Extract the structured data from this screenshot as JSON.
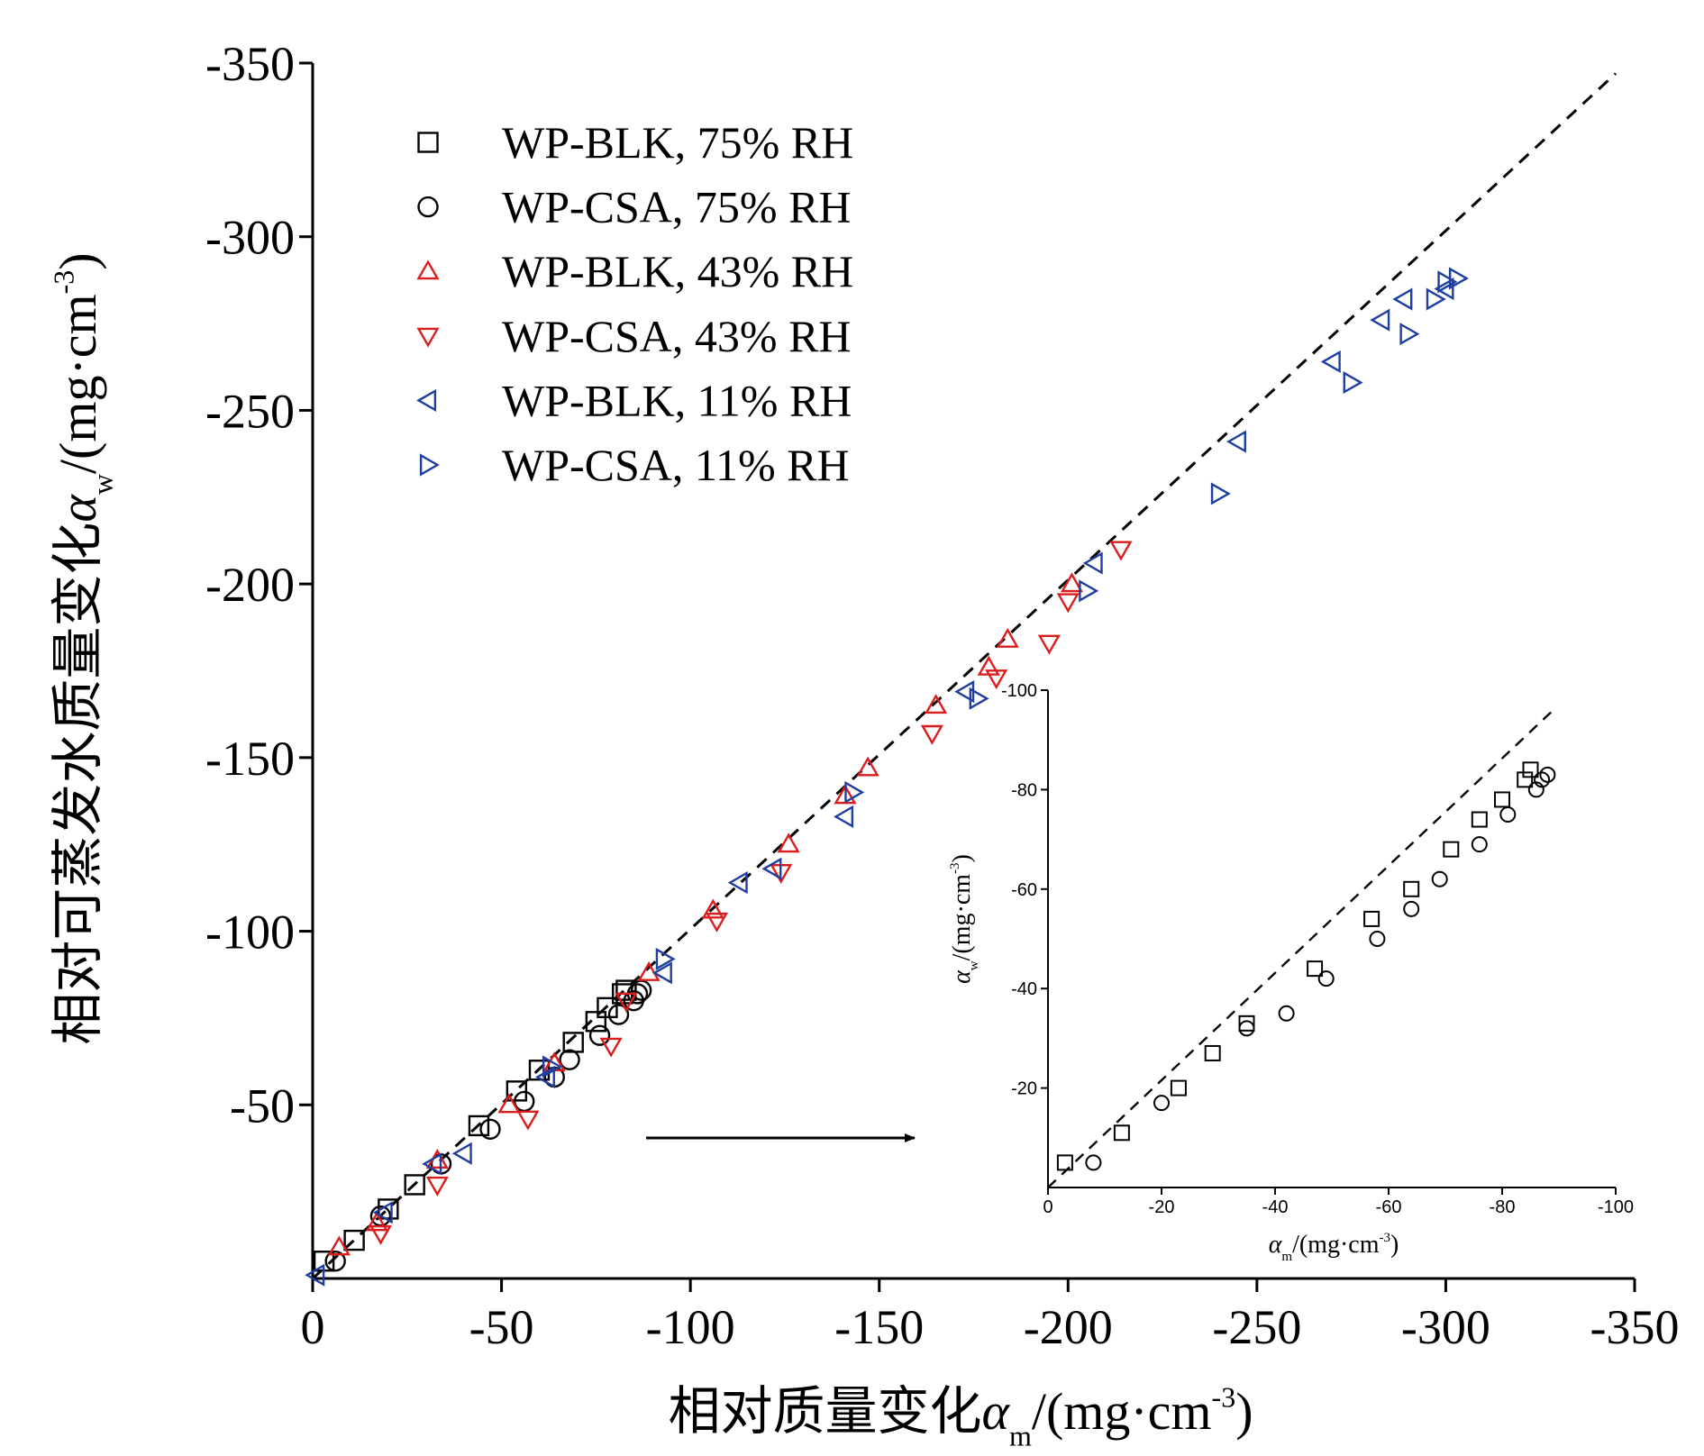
{
  "chart_data": [
    {
      "type": "scatter",
      "xlabel": "相对质量变化α_m/(mg·cm^-3)",
      "ylabel": "相对可蒸发水质量变化α_w/(mg·cm^-3)",
      "xlabel_parts": {
        "pre": "相对质量变化",
        "sym": "α",
        "sub": "m",
        "unit": "/(mg·cm",
        "sup": "-3",
        "close": ")"
      },
      "ylabel_parts": {
        "pre": "相对可蒸发水质量变化",
        "sym": "α",
        "sub": "w",
        "unit": "/(mg·cm",
        "sup": "-3",
        "close": ")"
      },
      "xlim": [
        0,
        -350
      ],
      "ylim": [
        0,
        -350
      ],
      "xticks": [
        0,
        -50,
        -100,
        -150,
        -200,
        -250,
        -300,
        -350
      ],
      "yticks": [
        -50,
        -100,
        -150,
        -200,
        -250,
        -300,
        -350
      ],
      "xtick_labels": [
        "0",
        "-50",
        "-100",
        "-150",
        "-200",
        "-250",
        "-300",
        "-350"
      ],
      "ytick_labels": [
        "-50",
        "-100",
        "-150",
        "-200",
        "-250",
        "-300",
        "-350"
      ],
      "legend_position": "top-left",
      "fit_line": {
        "style": "dashed",
        "from": [
          0,
          0
        ],
        "to": [
          -345,
          -347
        ]
      },
      "annotation": "arrow pointing to inset",
      "series": [
        {
          "name": "WP-BLK, 75% RH",
          "marker": "square",
          "color": "#000000",
          "points": [
            [
              -3,
              -5
            ],
            [
              -11,
              -11
            ],
            [
              -20,
              -20
            ],
            [
              -27,
              -27
            ],
            [
              -44,
              -44
            ],
            [
              -54,
              -54
            ],
            [
              -60,
              -60
            ],
            [
              -69,
              -68
            ],
            [
              -75,
              -74
            ],
            [
              -78,
              -78
            ],
            [
              -82,
              -82
            ],
            [
              -83,
              -83
            ]
          ]
        },
        {
          "name": "WP-CSA, 75% RH",
          "marker": "circle",
          "color": "#000000",
          "points": [
            [
              -6,
              -5
            ],
            [
              -18,
              -18
            ],
            [
              -34,
              -33
            ],
            [
              -47,
              -43
            ],
            [
              -56,
              -51
            ],
            [
              -64,
              -58
            ],
            [
              -68,
              -63
            ],
            [
              -76,
              -70
            ],
            [
              -81,
              -76
            ],
            [
              -85,
              -80
            ],
            [
              -86,
              -82
            ],
            [
              -87,
              -83
            ]
          ]
        },
        {
          "name": "WP-BLK, 43% RH",
          "marker": "triangle-up",
          "color": "#dd1c1c",
          "points": [
            [
              -7,
              -9
            ],
            [
              -17,
              -16
            ],
            [
              -33,
              -34
            ],
            [
              -52,
              -50
            ],
            [
              -64,
              -62
            ],
            [
              -89,
              -88
            ],
            [
              -106,
              -106
            ],
            [
              -126,
              -125
            ],
            [
              -141,
              -139
            ],
            [
              -147,
              -147
            ],
            [
              -165,
              -165
            ],
            [
              -179,
              -176
            ],
            [
              -184,
              -184
            ],
            [
              -201,
              -200
            ]
          ]
        },
        {
          "name": "WP-CSA, 43% RH",
          "marker": "triangle-down",
          "color": "#dd1c1c",
          "points": [
            [
              -18,
              -13
            ],
            [
              -33,
              -27
            ],
            [
              -57,
              -46
            ],
            [
              -79,
              -67
            ],
            [
              -83,
              -80
            ],
            [
              -107,
              -103
            ],
            [
              -124,
              -117
            ],
            [
              -164,
              -157
            ],
            [
              -181,
              -173
            ],
            [
              -195,
              -183
            ],
            [
              -200,
              -195
            ],
            [
              -214,
              -210
            ]
          ]
        },
        {
          "name": "WP-BLK, 11% RH",
          "marker": "triangle-left",
          "color": "#1f3fa0",
          "points": [
            [
              -1,
              -1
            ],
            [
              -19,
              -19
            ],
            [
              -32,
              -33
            ],
            [
              -40,
              -36
            ],
            [
              -62,
              -58
            ],
            [
              -93,
              -88
            ],
            [
              -113,
              -114
            ],
            [
              -122,
              -118
            ],
            [
              -141,
              -133
            ],
            [
              -173,
              -169
            ],
            [
              -207,
              -206
            ],
            [
              -245,
              -241
            ],
            [
              -270,
              -264
            ],
            [
              -283,
              -276
            ],
            [
              -289,
              -282
            ],
            [
              -300,
              -285
            ]
          ]
        },
        {
          "name": "WP-CSA, 11% RH",
          "marker": "triangle-right",
          "color": "#1f3fa0",
          "points": [
            [
              -63,
              -61
            ],
            [
              -93,
              -92
            ],
            [
              -143,
              -140
            ],
            [
              -176,
              -167
            ],
            [
              -205,
              -198
            ],
            [
              -240,
              -226
            ],
            [
              -275,
              -258
            ],
            [
              -290,
              -272
            ],
            [
              -297,
              -282
            ],
            [
              -300,
              -287
            ],
            [
              -303,
              -288
            ]
          ]
        }
      ]
    },
    {
      "type": "scatter",
      "xlabel": "α_m/(mg·cm^-3)",
      "ylabel": "α_w/(mg·cm^-3)",
      "xlabel_parts": {
        "sym": "α",
        "sub": "m",
        "unit": "/(mg·cm",
        "sup": "-3",
        "close": ")"
      },
      "ylabel_parts": {
        "sym": "α",
        "sub": "w",
        "unit": "/(mg·cm",
        "sup": "-3",
        "close": ")"
      },
      "xlim": [
        0,
        -100
      ],
      "ylim": [
        0,
        -100
      ],
      "xticks": [
        0,
        -20,
        -40,
        -60,
        -80,
        -100
      ],
      "yticks": [
        -20,
        -40,
        -60,
        -80,
        -100
      ],
      "xtick_labels": [
        "0",
        "-20",
        "-40",
        "-60",
        "-80",
        "-100"
      ],
      "ytick_labels": [
        "-20",
        "-40",
        "-60",
        "-80",
        "-100"
      ],
      "fit_line": {
        "style": "dashed",
        "from": [
          0,
          0
        ],
        "to": [
          -89,
          -96
        ]
      },
      "series": [
        {
          "name": "WP-BLK, 75% RH",
          "marker": "square",
          "color": "#000000",
          "points": [
            [
              -3,
              -5
            ],
            [
              -13,
              -11
            ],
            [
              -23,
              -20
            ],
            [
              -29,
              -27
            ],
            [
              -35,
              -33
            ],
            [
              -47,
              -44
            ],
            [
              -57,
              -54
            ],
            [
              -64,
              -60
            ],
            [
              -71,
              -68
            ],
            [
              -76,
              -74
            ],
            [
              -80,
              -78
            ],
            [
              -84,
              -82
            ],
            [
              -85,
              -84
            ]
          ]
        },
        {
          "name": "WP-CSA, 75% RH",
          "marker": "circle",
          "color": "#000000",
          "points": [
            [
              -8,
              -5
            ],
            [
              -20,
              -17
            ],
            [
              -35,
              -32
            ],
            [
              -42,
              -35
            ],
            [
              -49,
              -42
            ],
            [
              -58,
              -50
            ],
            [
              -64,
              -56
            ],
            [
              -69,
              -62
            ],
            [
              -76,
              -69
            ],
            [
              -81,
              -75
            ],
            [
              -86,
              -80
            ],
            [
              -87,
              -82
            ],
            [
              -88,
              -83
            ]
          ]
        }
      ]
    }
  ]
}
